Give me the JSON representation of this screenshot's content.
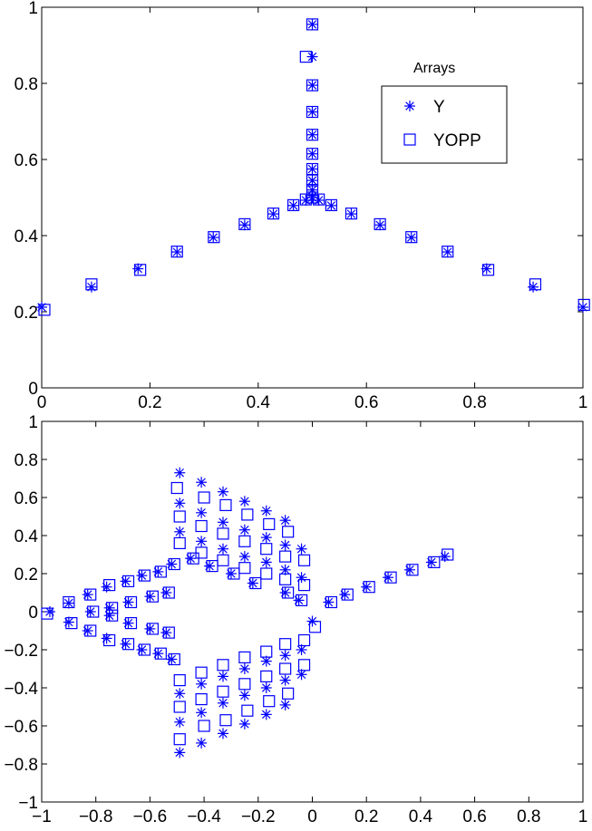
{
  "chart_data": [
    {
      "type": "scatter",
      "title": "",
      "xlabel": "",
      "ylabel": "",
      "xlim": [
        0,
        1
      ],
      "ylim": [
        0,
        1
      ],
      "xticks": [
        0,
        0.2,
        0.4,
        0.6,
        0.8,
        1
      ],
      "xtick_labels": [
        "0",
        "0.2",
        "0.4",
        "0.6",
        "0.8",
        "1"
      ],
      "yticks": [
        0,
        0.2,
        0.4,
        0.6,
        0.8,
        1
      ],
      "ytick_labels": [
        "0",
        "0.2",
        "0.4",
        "0.6",
        "0.8",
        "1"
      ],
      "grid": false,
      "color": "#0000ff",
      "legend": {
        "title": "Arrays",
        "placement": "top-right",
        "entries": [
          {
            "label": "Y",
            "marker": "asterisk"
          },
          {
            "label": "YOPP",
            "marker": "square"
          }
        ]
      },
      "series": [
        {
          "name": "Y",
          "marker": "asterisk",
          "points": [
            [
              0.0,
              0.212
            ],
            [
              0.092,
              0.265
            ],
            [
              0.178,
              0.313
            ],
            [
              0.25,
              0.357
            ],
            [
              0.317,
              0.395
            ],
            [
              0.375,
              0.428
            ],
            [
              0.428,
              0.457
            ],
            [
              0.465,
              0.479
            ],
            [
              0.488,
              0.493
            ],
            [
              0.5,
              0.5
            ],
            [
              0.512,
              0.493
            ],
            [
              0.535,
              0.479
            ],
            [
              0.572,
              0.457
            ],
            [
              0.625,
              0.428
            ],
            [
              0.683,
              0.395
            ],
            [
              0.75,
              0.357
            ],
            [
              0.822,
              0.313
            ],
            [
              0.908,
              0.265
            ],
            [
              1.0,
              0.212
            ],
            [
              0.5,
              0.52
            ],
            [
              0.5,
              0.545
            ],
            [
              0.5,
              0.575
            ],
            [
              0.5,
              0.615
            ],
            [
              0.5,
              0.665
            ],
            [
              0.5,
              0.725
            ],
            [
              0.5,
              0.795
            ],
            [
              0.5,
              0.87
            ],
            [
              0.5,
              0.955
            ]
          ]
        },
        {
          "name": "YOPP",
          "marker": "square",
          "points": [
            [
              0.005,
              0.205
            ],
            [
              0.092,
              0.272
            ],
            [
              0.182,
              0.31
            ],
            [
              0.25,
              0.358
            ],
            [
              0.318,
              0.396
            ],
            [
              0.375,
              0.43
            ],
            [
              0.428,
              0.458
            ],
            [
              0.465,
              0.48
            ],
            [
              0.488,
              0.495
            ],
            [
              0.5,
              0.5
            ],
            [
              0.512,
              0.495
            ],
            [
              0.535,
              0.48
            ],
            [
              0.572,
              0.458
            ],
            [
              0.625,
              0.43
            ],
            [
              0.683,
              0.396
            ],
            [
              0.75,
              0.358
            ],
            [
              0.825,
              0.31
            ],
            [
              0.912,
              0.272
            ],
            [
              1.002,
              0.218
            ],
            [
              0.5,
              0.52
            ],
            [
              0.5,
              0.545
            ],
            [
              0.5,
              0.575
            ],
            [
              0.5,
              0.615
            ],
            [
              0.5,
              0.665
            ],
            [
              0.5,
              0.725
            ],
            [
              0.5,
              0.795
            ],
            [
              0.488,
              0.87
            ],
            [
              0.5,
              0.955
            ]
          ]
        }
      ]
    },
    {
      "type": "scatter",
      "title": "",
      "xlabel": "",
      "ylabel": "",
      "xlim": [
        -1,
        1
      ],
      "ylim": [
        -1,
        1
      ],
      "xticks": [
        -1,
        -0.8,
        -0.6,
        -0.4,
        -0.2,
        0,
        0.2,
        0.4,
        0.6,
        0.8,
        1
      ],
      "xtick_labels": [
        "−1",
        "−0.8",
        "−0.6",
        "−0.4",
        "−0.2",
        "0",
        "0.2",
        "0.4",
        "0.6",
        "0.8",
        "1"
      ],
      "yticks": [
        -1,
        -0.8,
        -0.6,
        -0.4,
        -0.2,
        0,
        0.2,
        0.4,
        0.6,
        0.8,
        1
      ],
      "ytick_labels": [
        "−1",
        "−0.8",
        "−0.6",
        "−0.4",
        "−0.2",
        "0",
        "0.2",
        "0.4",
        "0.6",
        "0.8",
        "1"
      ],
      "grid": false,
      "color": "#0000ff",
      "series": [
        {
          "name": "Y",
          "marker": "asterisk",
          "points": [
            [
              -0.97,
              0.0
            ],
            [
              -0.9,
              0.045
            ],
            [
              -0.9,
              -0.055
            ],
            [
              -0.83,
              0.09
            ],
            [
              -0.83,
              -0.1
            ],
            [
              -0.76,
              0.13
            ],
            [
              -0.76,
              -0.14
            ],
            [
              -0.69,
              0.16
            ],
            [
              -0.69,
              -0.17
            ],
            [
              -0.63,
              0.19
            ],
            [
              -0.63,
              -0.2
            ],
            [
              -0.57,
              0.21
            ],
            [
              -0.57,
              -0.22
            ],
            [
              -0.52,
              0.25
            ],
            [
              -0.52,
              -0.25
            ],
            [
              -0.49,
              0.73
            ],
            [
              -0.49,
              -0.74
            ],
            [
              -0.41,
              0.68
            ],
            [
              -0.41,
              -0.69
            ],
            [
              -0.33,
              0.63
            ],
            [
              -0.33,
              -0.64
            ],
            [
              -0.25,
              0.58
            ],
            [
              -0.25,
              -0.59
            ],
            [
              -0.17,
              0.53
            ],
            [
              -0.17,
              -0.54
            ],
            [
              -0.1,
              0.48
            ],
            [
              -0.1,
              -0.49
            ],
            [
              0.0,
              -0.05
            ],
            [
              0.06,
              0.05
            ],
            [
              0.12,
              0.09
            ],
            [
              0.2,
              0.13
            ],
            [
              0.28,
              0.18
            ],
            [
              0.36,
              0.22
            ],
            [
              0.44,
              0.26
            ],
            [
              0.49,
              0.29
            ],
            [
              -0.22,
              0.15
            ],
            [
              -0.3,
              0.2
            ],
            [
              -0.38,
              0.24
            ],
            [
              -0.45,
              0.28
            ],
            [
              -0.1,
              0.1
            ],
            [
              -0.05,
              0.06
            ],
            [
              -0.82,
              0.0
            ],
            [
              -0.75,
              0.02
            ],
            [
              -0.75,
              -0.02
            ],
            [
              -0.68,
              0.05
            ],
            [
              -0.68,
              -0.06
            ],
            [
              -0.6,
              0.08
            ],
            [
              -0.6,
              -0.09
            ],
            [
              -0.54,
              0.1
            ],
            [
              -0.54,
              -0.11
            ],
            [
              -0.49,
              0.57
            ],
            [
              -0.49,
              0.42
            ],
            [
              -0.49,
              -0.43
            ],
            [
              -0.49,
              -0.58
            ],
            [
              -0.41,
              0.52
            ],
            [
              -0.41,
              0.37
            ],
            [
              -0.41,
              -0.38
            ],
            [
              -0.41,
              -0.53
            ],
            [
              -0.33,
              0.47
            ],
            [
              -0.33,
              0.33
            ],
            [
              -0.33,
              -0.34
            ],
            [
              -0.33,
              -0.48
            ],
            [
              -0.25,
              0.43
            ],
            [
              -0.25,
              0.29
            ],
            [
              -0.25,
              -0.3
            ],
            [
              -0.25,
              -0.44
            ],
            [
              -0.17,
              0.39
            ],
            [
              -0.17,
              0.26
            ],
            [
              -0.17,
              -0.26
            ],
            [
              -0.17,
              -0.4
            ],
            [
              -0.1,
              0.35
            ],
            [
              -0.1,
              0.22
            ],
            [
              -0.1,
              -0.23
            ],
            [
              -0.1,
              -0.36
            ],
            [
              -0.04,
              0.33
            ],
            [
              -0.04,
              0.18
            ],
            [
              -0.04,
              -0.2
            ],
            [
              -0.04,
              -0.33
            ]
          ]
        },
        {
          "name": "YOPP",
          "marker": "square",
          "points": [
            [
              -0.98,
              -0.01
            ],
            [
              -0.9,
              0.05
            ],
            [
              -0.89,
              -0.06
            ],
            [
              -0.82,
              0.09
            ],
            [
              -0.82,
              -0.1
            ],
            [
              -0.75,
              0.14
            ],
            [
              -0.75,
              -0.15
            ],
            [
              -0.68,
              0.16
            ],
            [
              -0.68,
              -0.17
            ],
            [
              -0.62,
              0.19
            ],
            [
              -0.62,
              -0.2
            ],
            [
              -0.56,
              0.21
            ],
            [
              -0.56,
              -0.22
            ],
            [
              -0.51,
              0.25
            ],
            [
              -0.51,
              -0.25
            ],
            [
              -0.5,
              0.65
            ],
            [
              -0.49,
              -0.67
            ],
            [
              -0.4,
              0.6
            ],
            [
              -0.4,
              -0.6
            ],
            [
              -0.32,
              0.56
            ],
            [
              -0.32,
              -0.57
            ],
            [
              -0.24,
              0.51
            ],
            [
              -0.24,
              -0.52
            ],
            [
              -0.16,
              0.46
            ],
            [
              -0.16,
              -0.47
            ],
            [
              -0.09,
              0.42
            ],
            [
              -0.09,
              -0.43
            ],
            [
              0.01,
              -0.08
            ],
            [
              0.07,
              0.05
            ],
            [
              0.13,
              0.09
            ],
            [
              0.21,
              0.13
            ],
            [
              0.29,
              0.18
            ],
            [
              0.37,
              0.22
            ],
            [
              0.45,
              0.26
            ],
            [
              0.5,
              0.3
            ],
            [
              -0.21,
              0.15
            ],
            [
              -0.29,
              0.2
            ],
            [
              -0.37,
              0.24
            ],
            [
              -0.44,
              0.28
            ],
            [
              -0.09,
              0.1
            ],
            [
              -0.04,
              0.06
            ],
            [
              -0.81,
              0.0
            ],
            [
              -0.74,
              0.02
            ],
            [
              -0.74,
              -0.02
            ],
            [
              -0.67,
              0.05
            ],
            [
              -0.67,
              -0.06
            ],
            [
              -0.59,
              0.08
            ],
            [
              -0.59,
              -0.09
            ],
            [
              -0.53,
              0.1
            ],
            [
              -0.53,
              -0.11
            ],
            [
              -0.49,
              0.5
            ],
            [
              -0.49,
              0.36
            ],
            [
              -0.49,
              -0.36
            ],
            [
              -0.49,
              -0.5
            ],
            [
              -0.41,
              0.45
            ],
            [
              -0.41,
              0.31
            ],
            [
              -0.41,
              -0.32
            ],
            [
              -0.41,
              -0.46
            ],
            [
              -0.33,
              0.41
            ],
            [
              -0.33,
              0.27
            ],
            [
              -0.33,
              -0.28
            ],
            [
              -0.33,
              -0.42
            ],
            [
              -0.25,
              0.37
            ],
            [
              -0.25,
              0.23
            ],
            [
              -0.25,
              -0.24
            ],
            [
              -0.25,
              -0.38
            ],
            [
              -0.17,
              0.33
            ],
            [
              -0.17,
              0.2
            ],
            [
              -0.17,
              -0.21
            ],
            [
              -0.17,
              -0.34
            ],
            [
              -0.1,
              0.29
            ],
            [
              -0.1,
              0.17
            ],
            [
              -0.1,
              -0.17
            ],
            [
              -0.1,
              -0.3
            ],
            [
              -0.03,
              0.27
            ],
            [
              -0.03,
              0.14
            ],
            [
              -0.03,
              -0.15
            ],
            [
              -0.03,
              -0.28
            ]
          ]
        }
      ]
    }
  ]
}
